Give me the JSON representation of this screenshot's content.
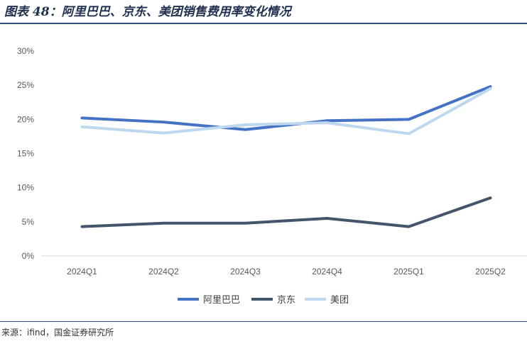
{
  "figure": {
    "title": "图表 48：阿里巴巴、京东、美团销售费用率变化情况",
    "source": "来源：ifind，国金证券研究所"
  },
  "chart_data": {
    "type": "line",
    "categories": [
      "2024Q1",
      "2024Q2",
      "2024Q3",
      "2024Q4",
      "2025Q1",
      "2025Q2"
    ],
    "ylim": [
      0,
      30
    ],
    "yticks": [
      "0%",
      "5%",
      "10%",
      "15%",
      "20%",
      "25%",
      "30%"
    ],
    "grid": false,
    "legend_position": "bottom",
    "series": [
      {
        "name": "阿里巴巴",
        "color": "#4472c4",
        "values": [
          20.2,
          19.6,
          18.5,
          19.8,
          20.0,
          24.8
        ]
      },
      {
        "name": "京东",
        "color": "#44546a",
        "values": [
          4.3,
          4.8,
          4.8,
          5.5,
          4.3,
          8.5
        ]
      },
      {
        "name": "美团",
        "color": "#bdd7ee",
        "values": [
          18.9,
          18.0,
          19.2,
          19.5,
          17.9,
          24.5
        ]
      }
    ]
  }
}
